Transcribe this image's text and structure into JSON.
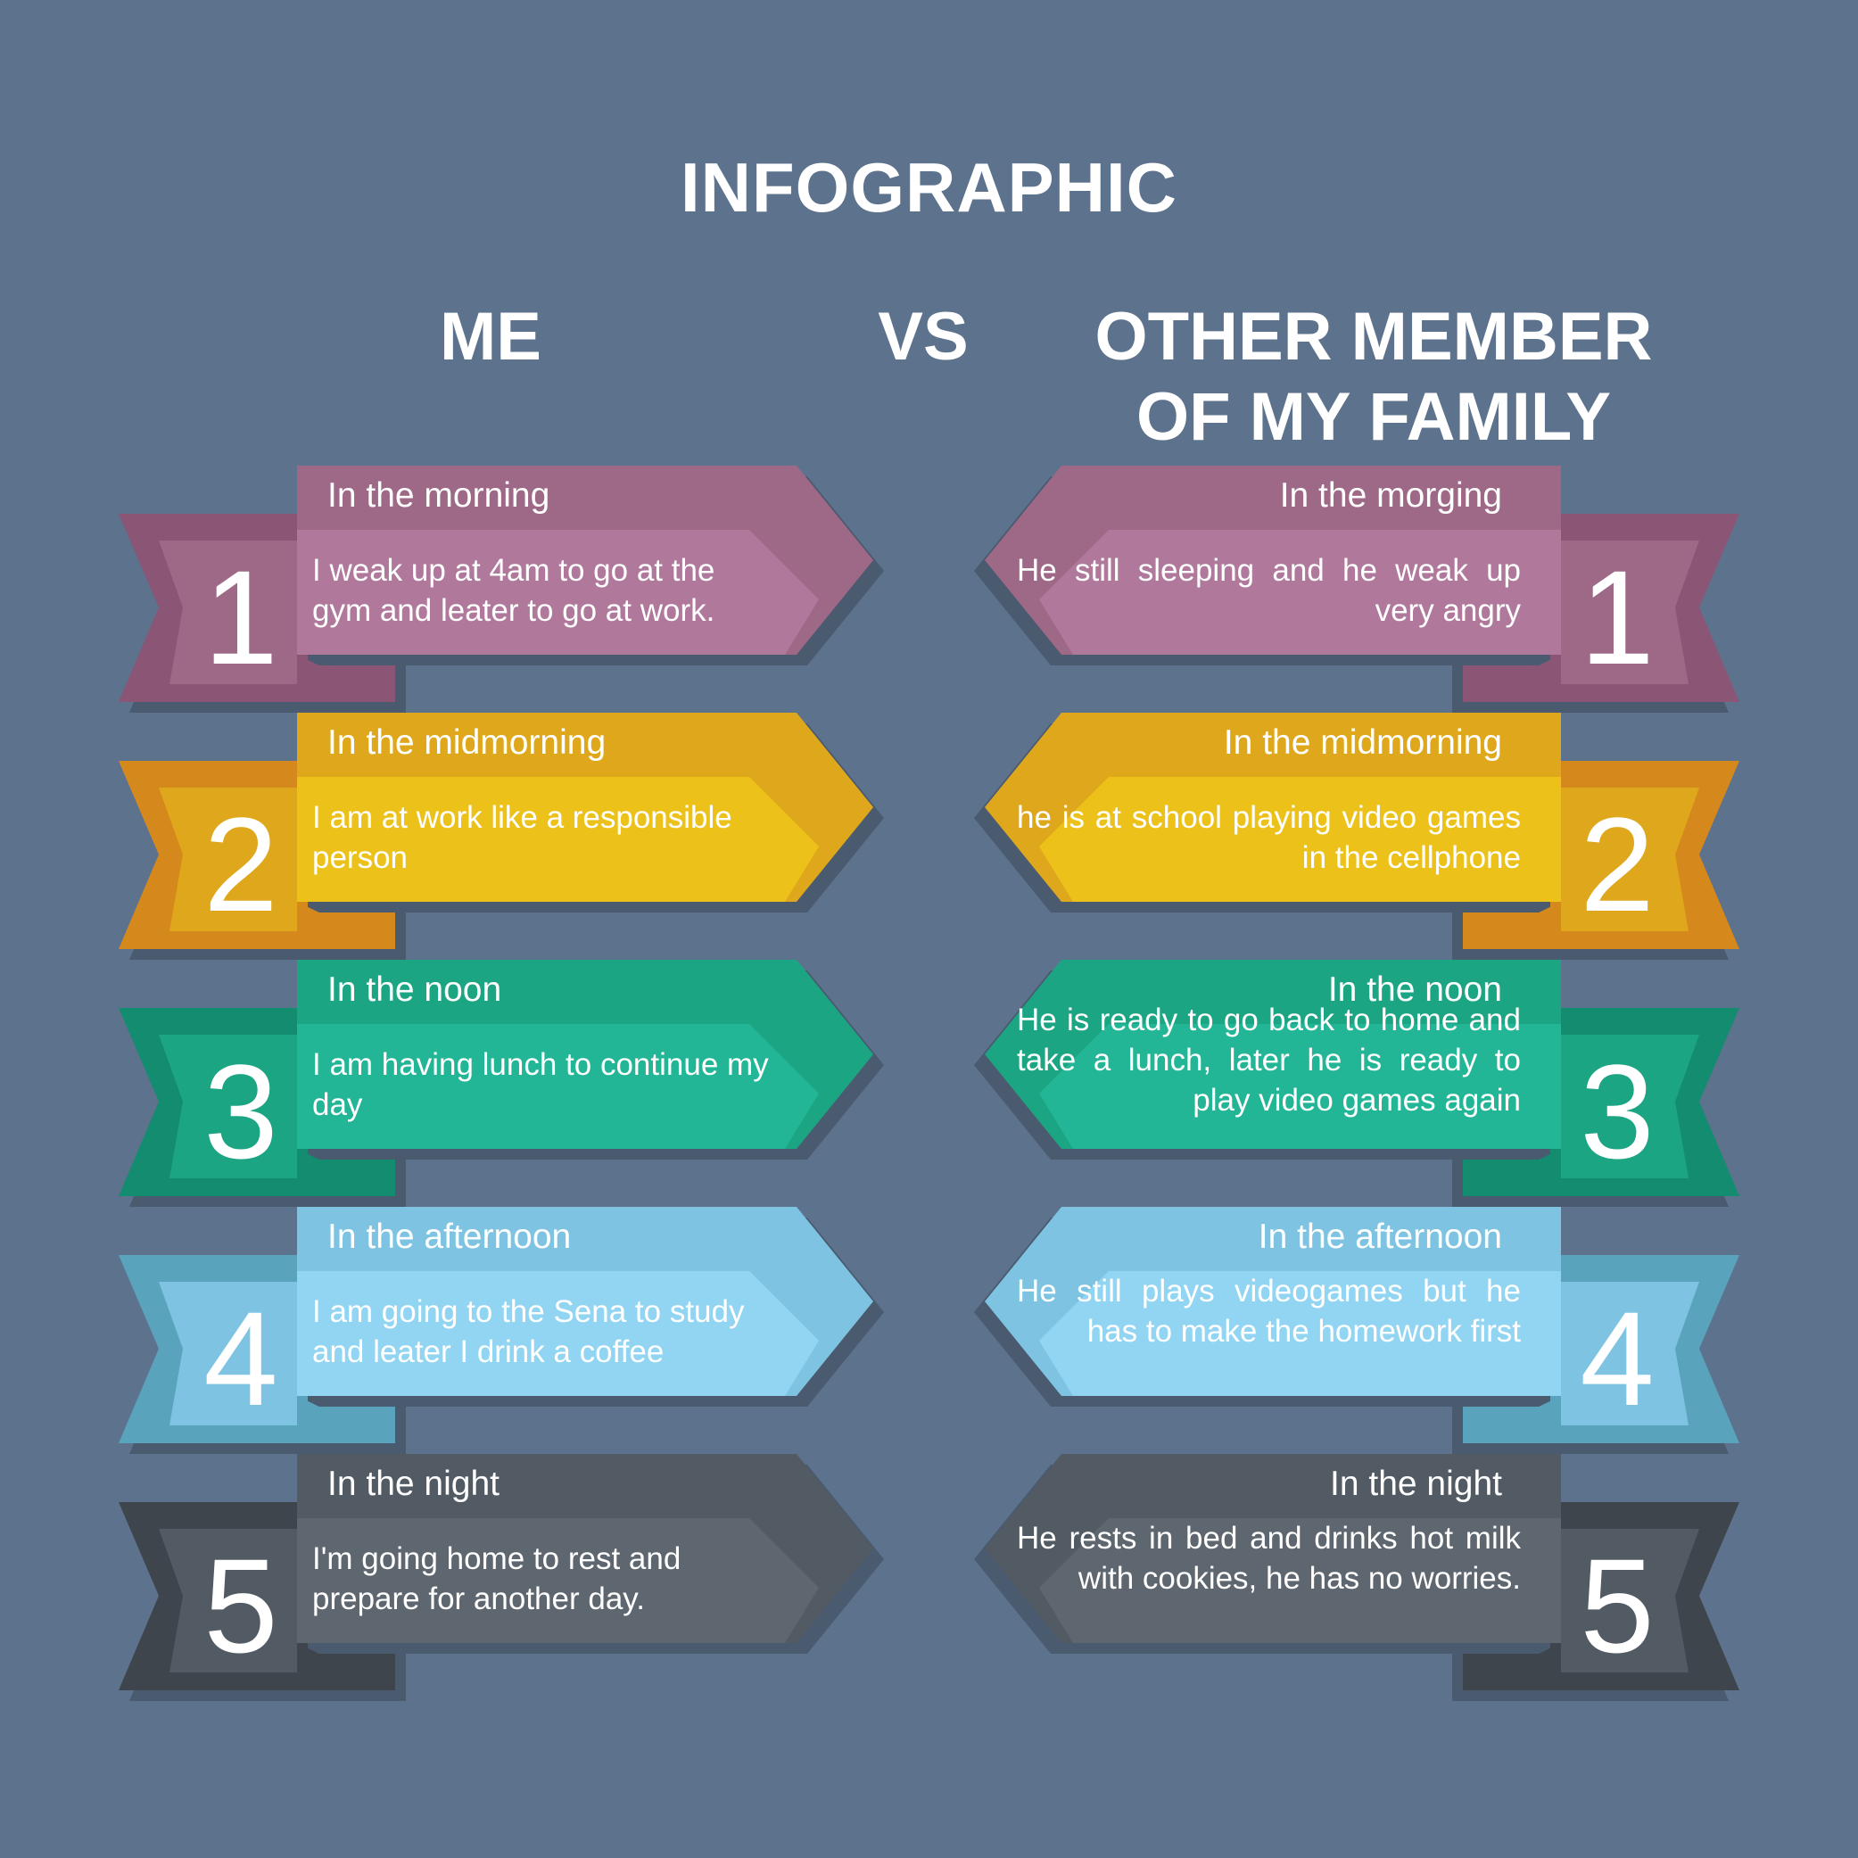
{
  "title": "INFOGRAPHIC",
  "headers": {
    "left": "ME",
    "middle": "VS",
    "right_line1": "OTHER MEMBER",
    "right_line2": "OF MY FAMILY"
  },
  "colors": {
    "background": "#5d728d",
    "text": "#ffffff"
  },
  "rows": [
    {
      "number": "1",
      "colors": {
        "light": "#b0789b",
        "mid": "#9e6887",
        "dark": "#8b5575"
      },
      "me": {
        "label": "In the morning",
        "text": "I weak up at 4am to go at the gym and leater to go at work."
      },
      "other": {
        "label": "In the morging",
        "text": "He still sleeping and he weak up very angry"
      }
    },
    {
      "number": "2",
      "colors": {
        "light": "#ecc21a",
        "mid": "#dfa81c",
        "dark": "#d5891c"
      },
      "me": {
        "label": "In the midmorning",
        "text": "I am at work like a responsible person"
      },
      "other": {
        "label": "In the midmorning",
        "text": "he is at school playing video games in the cellphone"
      }
    },
    {
      "number": "3",
      "colors": {
        "light": "#22b596",
        "mid": "#1ca583",
        "dark": "#138c70"
      },
      "me": {
        "label": "In the noon",
        "text": "I am having lunch to continue my day"
      },
      "other": {
        "label": "In the noon",
        "text": "He is ready to go back to home and take a lunch, later he is ready to play video games again"
      }
    },
    {
      "number": "4",
      "colors": {
        "light": "#92d5f2",
        "mid": "#7ec4e2",
        "dark": "#5aa3bd"
      },
      "me": {
        "label": "In the afternoon",
        "text": "I am going to the Sena to study and leater I drink a coffee"
      },
      "other": {
        "label": "In the afternoon",
        "text": "He still plays videogames  but he has to make the homework first"
      }
    },
    {
      "number": "5",
      "colors": {
        "light": "#5e666f",
        "mid": "#525a63",
        "dark": "#3f454c"
      },
      "me": {
        "label": "In the night",
        "text": "I'm going home to rest and prepare for another day."
      },
      "other": {
        "label": "In the night",
        "text": "He rests in bed and drinks hot milk with cookies, he has no worries."
      }
    }
  ]
}
